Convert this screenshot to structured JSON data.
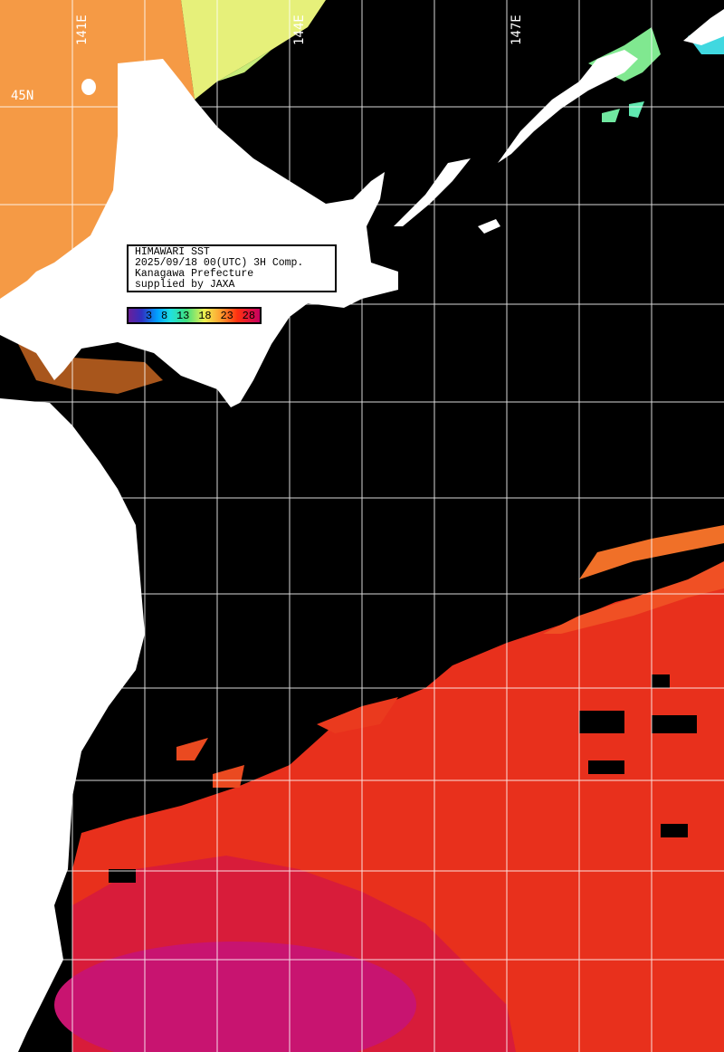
{
  "info_box": {
    "title": "HIMAWARI SST",
    "datetime": "2025/09/18 00(UTC) 3H Comp.",
    "region": "Kanagawa Prefecture",
    "credit": "supplied by JAXA"
  },
  "colorbar": {
    "ticks": [
      "3",
      "8",
      "13",
      "18",
      "23",
      "28"
    ],
    "colors": [
      "#6a1f9a",
      "#00a0ff",
      "#40e080",
      "#f0f050",
      "#ffa030",
      "#ff3010",
      "#c80060"
    ]
  },
  "grid_labels": {
    "lon": [
      "141E",
      "144E",
      "147E"
    ],
    "lat": [
      "45N"
    ]
  },
  "colors": {
    "land": "#ffffff",
    "no_data": "#000000",
    "grid": "#ffffff"
  }
}
